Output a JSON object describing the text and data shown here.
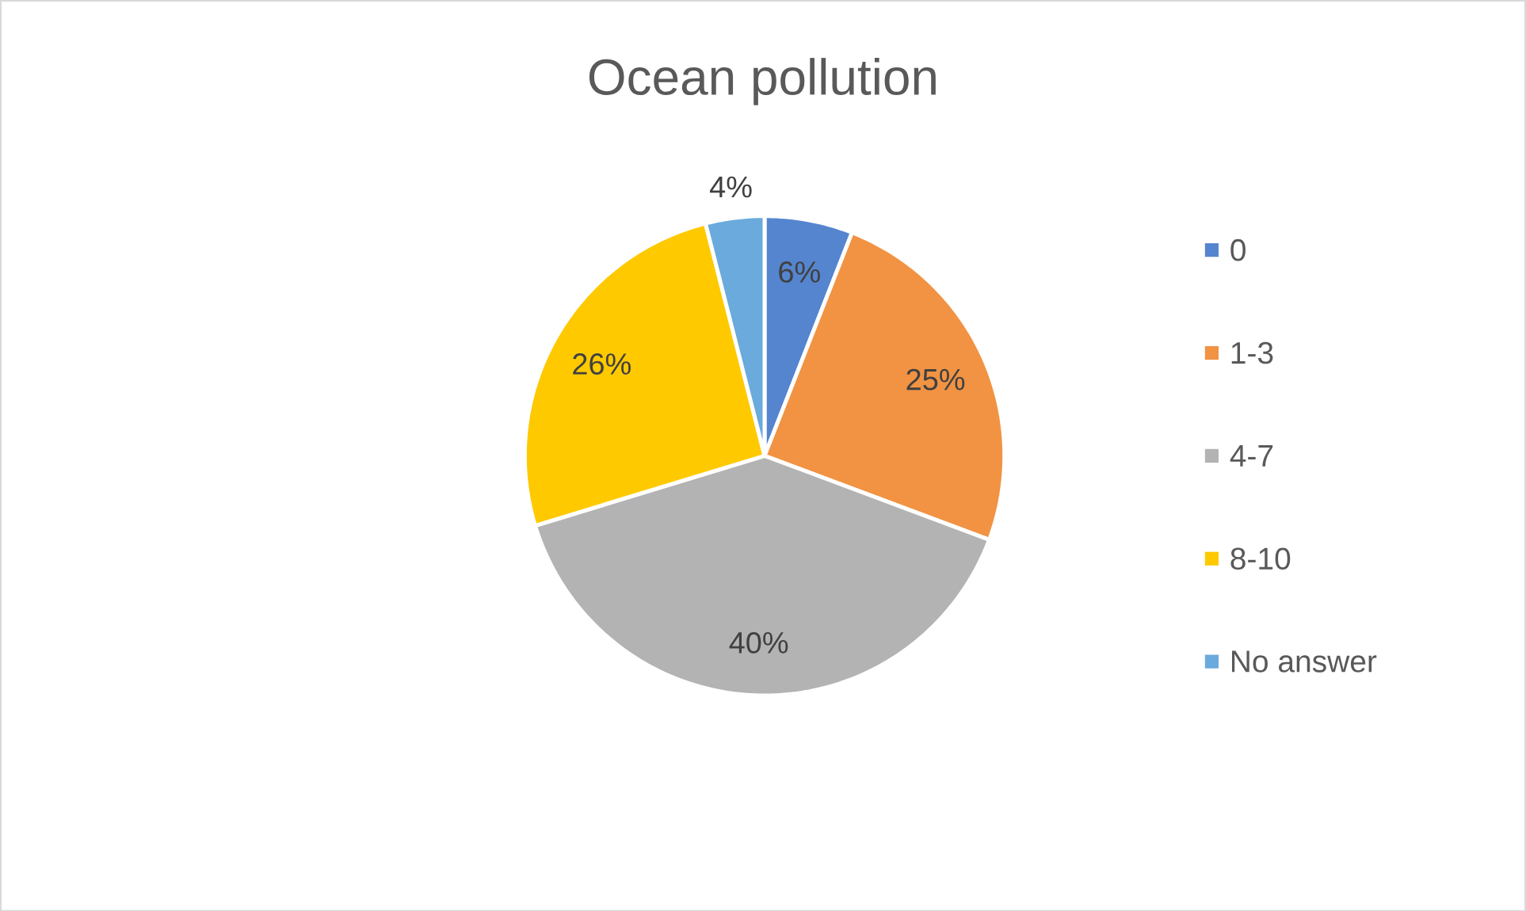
{
  "chart_data": {
    "type": "pie",
    "title": "Ocean pollution",
    "categories": [
      "0",
      "1-3",
      "4-7",
      "8-10",
      "No answer"
    ],
    "values": [
      6,
      25,
      40,
      26,
      4
    ],
    "colors": [
      "#5585cf",
      "#f19343",
      "#b3b3b3",
      "#ffc900",
      "#6aaadc"
    ],
    "value_labels": [
      "6%",
      "25%",
      "40%",
      "26%",
      "4%"
    ],
    "legend": "right"
  }
}
